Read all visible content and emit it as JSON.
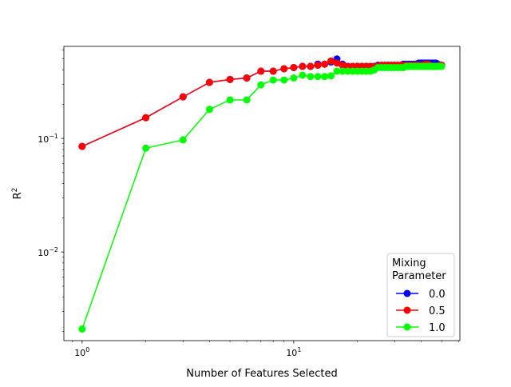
{
  "chart_data": {
    "type": "line",
    "xlabel": "Number of Features Selected",
    "ylabel": "R",
    "ylabel_superscript": "2",
    "xscale": "log",
    "yscale": "log",
    "xlim": [
      0.82,
      61
    ],
    "ylim": [
      0.00166,
      0.645
    ],
    "xticks": [
      {
        "value": 1,
        "base": "10",
        "exp": "0"
      },
      {
        "value": 10,
        "base": "10",
        "exp": "1"
      }
    ],
    "yticks": [
      {
        "value": 0.01,
        "base": "10",
        "exp": "−2"
      },
      {
        "value": 0.1,
        "base": "10",
        "exp": "−1"
      }
    ],
    "grid": false,
    "legend": {
      "title": "Mixing\nParameter",
      "placement": "lower-right"
    },
    "x": [
      1,
      2,
      3,
      4,
      5,
      6,
      7,
      8,
      9,
      10,
      11,
      12,
      13,
      14,
      15,
      16,
      17,
      18,
      19,
      20,
      21,
      22,
      23,
      24,
      25,
      26,
      27,
      28,
      29,
      30,
      31,
      32,
      33,
      34,
      35,
      36,
      37,
      38,
      39,
      40,
      41,
      42,
      43,
      44,
      45,
      46,
      47,
      48,
      49,
      50
    ],
    "series": [
      {
        "name": "0.0",
        "color": "#0000ff",
        "values": [
          0.085,
          0.152,
          0.232,
          0.311,
          0.33,
          0.34,
          0.39,
          0.39,
          0.41,
          0.42,
          0.43,
          0.43,
          0.45,
          0.45,
          0.47,
          0.5,
          0.45,
          0.43,
          0.43,
          0.43,
          0.43,
          0.43,
          0.43,
          0.43,
          0.44,
          0.44,
          0.44,
          0.44,
          0.44,
          0.44,
          0.44,
          0.44,
          0.45,
          0.45,
          0.45,
          0.45,
          0.45,
          0.45,
          0.46,
          0.46,
          0.46,
          0.46,
          0.46,
          0.46,
          0.46,
          0.46,
          0.46,
          0.45,
          0.44,
          0.44
        ]
      },
      {
        "name": "0.5",
        "color": "#ff0000",
        "values": [
          0.085,
          0.152,
          0.232,
          0.311,
          0.33,
          0.34,
          0.39,
          0.39,
          0.41,
          0.42,
          0.43,
          0.43,
          0.44,
          0.45,
          0.48,
          0.46,
          0.44,
          0.43,
          0.43,
          0.43,
          0.43,
          0.43,
          0.43,
          0.43,
          0.43,
          0.44,
          0.44,
          0.44,
          0.44,
          0.44,
          0.44,
          0.44,
          0.44,
          0.44,
          0.44,
          0.44,
          0.44,
          0.44,
          0.44,
          0.44,
          0.44,
          0.45,
          0.45,
          0.44,
          0.43,
          0.43,
          0.43,
          0.43,
          0.44,
          0.44
        ]
      },
      {
        "name": "1.0",
        "color": "#00ff00",
        "values": [
          0.0021,
          0.082,
          0.097,
          0.18,
          0.218,
          0.218,
          0.296,
          0.326,
          0.326,
          0.34,
          0.36,
          0.35,
          0.35,
          0.35,
          0.355,
          0.39,
          0.39,
          0.39,
          0.39,
          0.39,
          0.39,
          0.39,
          0.39,
          0.4,
          0.42,
          0.42,
          0.42,
          0.42,
          0.42,
          0.42,
          0.42,
          0.42,
          0.42,
          0.43,
          0.43,
          0.43,
          0.43,
          0.43,
          0.43,
          0.43,
          0.43,
          0.43,
          0.43,
          0.43,
          0.43,
          0.43,
          0.43,
          0.43,
          0.43,
          0.43
        ]
      }
    ]
  }
}
